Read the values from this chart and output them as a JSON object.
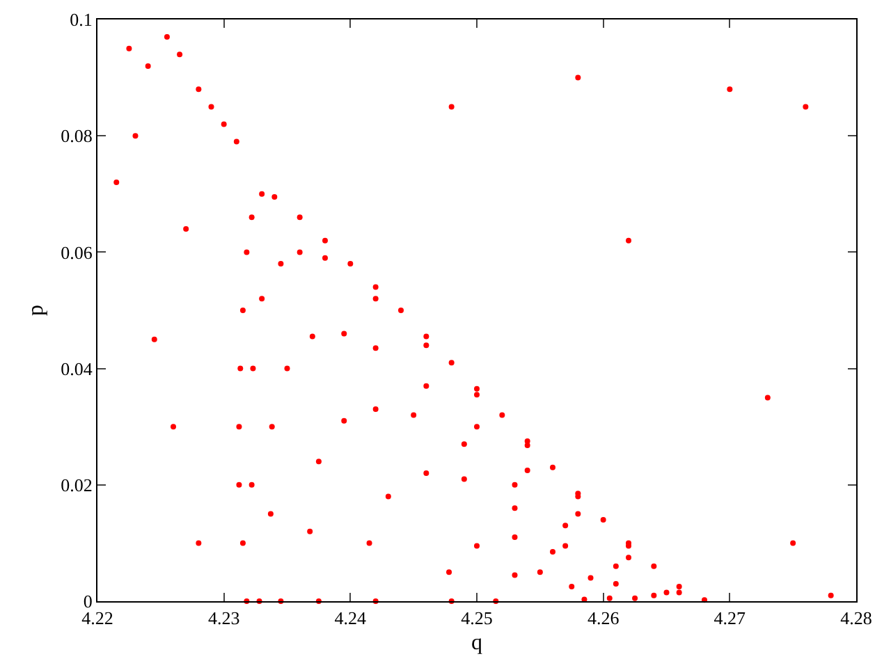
{
  "chart_data": {
    "type": "scatter",
    "xlabel": "q",
    "ylabel": "p",
    "xlim": [
      4.22,
      4.28
    ],
    "ylim": [
      0,
      0.1
    ],
    "xticks": [
      4.22,
      4.23,
      4.24,
      4.25,
      4.26,
      4.27,
      4.28
    ],
    "yticks": [
      0,
      0.02,
      0.04,
      0.06,
      0.08,
      0.1
    ],
    "marker": "circle",
    "series": [
      {
        "color": "#ff0000",
        "x": [
          4.2318,
          4.2315,
          4.2312,
          4.2312,
          4.2313,
          4.2315,
          4.2318,
          4.2322,
          4.233,
          4.234,
          4.236,
          4.238,
          4.24,
          4.242,
          4.244,
          4.246,
          4.248,
          4.25,
          4.252,
          4.254,
          4.256,
          4.258,
          4.26,
          4.262,
          4.264,
          4.266,
          4.268,
          4.2328,
          4.2322,
          4.2323,
          4.233,
          4.2345,
          4.236,
          4.238,
          4.242,
          4.246,
          4.25,
          4.254,
          4.258,
          4.262,
          4.266,
          4.2345,
          4.2337,
          4.2338,
          4.235,
          4.237,
          4.2395,
          4.242,
          4.246,
          4.25,
          4.254,
          4.258,
          4.262,
          4.265,
          4.2375,
          4.2368,
          4.2375,
          4.2395,
          4.242,
          4.245,
          4.249,
          4.253,
          4.257,
          4.261,
          4.264,
          4.242,
          4.2415,
          4.243,
          4.246,
          4.249,
          4.253,
          4.257,
          4.261,
          4.2625,
          4.248,
          4.2478,
          4.25,
          4.253,
          4.256,
          4.259,
          4.2605,
          4.2515,
          4.253,
          4.255,
          4.2575,
          4.2585,
          4.2225,
          4.224,
          4.2255,
          4.2265,
          4.228,
          4.229,
          4.23,
          4.231,
          4.223,
          4.2215,
          4.227,
          4.2245,
          4.226,
          4.228,
          4.248,
          4.258,
          4.262,
          4.27,
          4.276,
          4.273,
          4.275,
          4.278
        ],
        "values": [
          0,
          0.01,
          0.02,
          0.03,
          0.04,
          0.05,
          0.06,
          0.066,
          0.07,
          0.0695,
          0.066,
          0.062,
          0.058,
          0.054,
          0.05,
          0.0455,
          0.041,
          0.0365,
          0.032,
          0.0275,
          0.023,
          0.0185,
          0.014,
          0.01,
          0.006,
          0.0025,
          0.0002,
          0,
          0.02,
          0.04,
          0.052,
          0.058,
          0.06,
          0.059,
          0.052,
          0.044,
          0.0355,
          0.0268,
          0.018,
          0.0095,
          0.0015,
          0,
          0.015,
          0.03,
          0.04,
          0.0455,
          0.046,
          0.0435,
          0.037,
          0.03,
          0.0225,
          0.015,
          0.0075,
          0.0015,
          0,
          0.012,
          0.024,
          0.031,
          0.033,
          0.032,
          0.027,
          0.02,
          0.013,
          0.006,
          0.001,
          0,
          0.01,
          0.018,
          0.022,
          0.021,
          0.016,
          0.0095,
          0.003,
          0.0005,
          0,
          0.005,
          0.0095,
          0.011,
          0.0085,
          0.004,
          0.0005,
          0,
          0.0045,
          0.005,
          0.0025,
          0.0003,
          0.095,
          0.092,
          0.097,
          0.094,
          0.088,
          0.085,
          0.082,
          0.079,
          0.08,
          0.072,
          0.064,
          0.045,
          0.03,
          0.01,
          0.085,
          0.09,
          0.062,
          0.088,
          0.085,
          0.035,
          0.01,
          0.001
        ]
      }
    ]
  }
}
